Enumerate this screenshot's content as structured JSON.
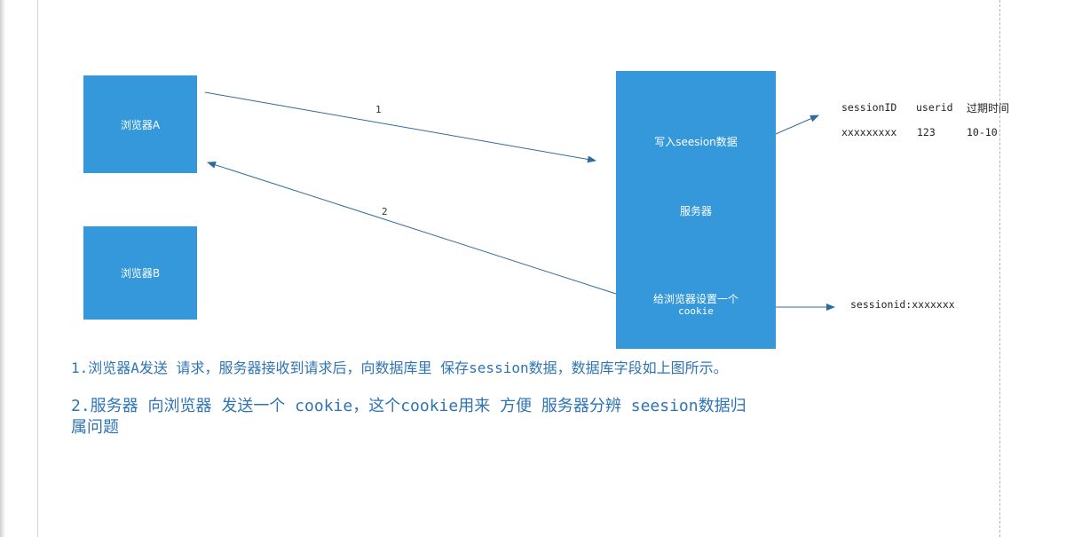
{
  "browser_a": {
    "label": "浏览器A"
  },
  "browser_b": {
    "label": "浏览器B"
  },
  "server": {
    "label": "服务器",
    "write_label": "写入seesion数据",
    "cookie_label_line1": "给浏览器设置一个",
    "cookie_label_line2": "cookie"
  },
  "arrows": {
    "request_label": "1",
    "response_label": "2"
  },
  "session_table": {
    "headers": [
      "sessionID",
      "userid",
      "过期时间"
    ],
    "row": [
      "xxxxxxxxx",
      "123",
      "10-10"
    ]
  },
  "cookie_value": "sessionid:xxxxxxx",
  "notes": {
    "note1": "1.浏览器A发送 请求，服务器接收到请求后，向数据库里 保存session数据，数据库字段如上图所示。",
    "note2_line1": "2.服务器 向浏览器 发送一个 cookie，这个cookie用来 方便 服务器分辨 seesion数据归",
    "note2_line2": "属问题"
  },
  "colors": {
    "box": "#3498db",
    "arrow": "#2f6a9e",
    "note_text": "#2e74b5"
  }
}
